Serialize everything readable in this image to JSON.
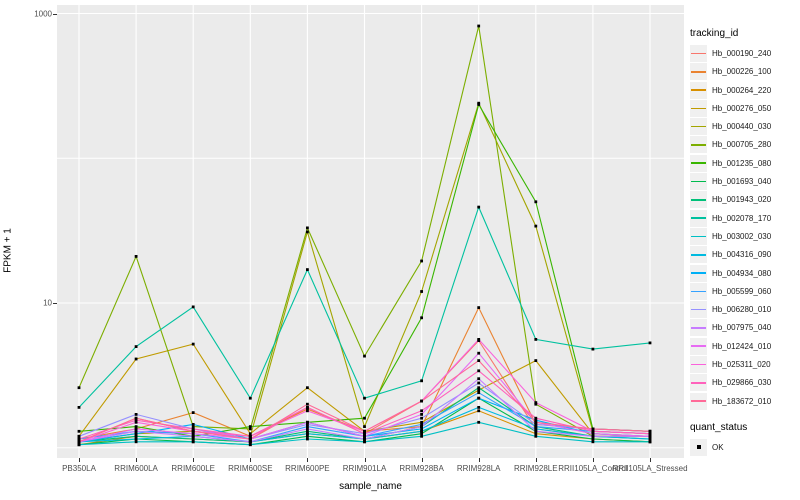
{
  "figure": {
    "background": "#FFFFFF",
    "panel_background": "#EBEBEB",
    "gridline_color": "#FFFFFF",
    "point_color": "#000000",
    "tick_label_color": "#4D4D4D"
  },
  "axes": {
    "y_title": "FPKM + 1",
    "x_title": "sample_name",
    "y_tick_labels": [
      "1000",
      "10"
    ]
  },
  "legend": {
    "color_legend_title": "tracking_id",
    "shape_legend_title": "quant_status",
    "shape_items": [
      "OK"
    ]
  },
  "chart_data": {
    "type": "line",
    "title": "",
    "xlabel": "sample_name",
    "ylabel": "FPKM + 1",
    "y_scale": "log10",
    "y_ticks": [
      {
        "label": "1000",
        "value": 1000
      },
      {
        "label": "10",
        "value": 10
      }
    ],
    "y_gridlines": [
      1000,
      100,
      10,
      1
    ],
    "ylim": [
      0.88,
      1150
    ],
    "grid": true,
    "legend_position": "right",
    "marker": "black-square",
    "x": [
      "PB350LA",
      "RRIM600LA",
      "RRIM600LE",
      "RRIM600SE",
      "RRIM600PE",
      "RRIM901LA",
      "RRIM928BA",
      "RRIM928LA",
      "RRIM928LE",
      "RRII105LA_Control",
      "RRII105LA_Stressed"
    ],
    "values_are": "FPKM + 1 (log scale), estimated from pixels",
    "series": [
      {
        "name": "Hb_000190_240",
        "color": "#F8766D",
        "values": [
          1.1,
          1.6,
          1.3,
          1.15,
          1.9,
          1.25,
          2.1,
          5.5,
          1.35,
          1.2,
          1.2
        ]
      },
      {
        "name": "Hb_000226_100",
        "color": "#EA8331",
        "values": [
          1.15,
          1.35,
          1.75,
          1.2,
          1.85,
          1.3,
          1.4,
          9.3,
          1.45,
          1.35,
          1.3
        ]
      },
      {
        "name": "Hb_000264_220",
        "color": "#D89000",
        "values": [
          1.05,
          1.2,
          1.15,
          1.1,
          1.25,
          1.15,
          1.3,
          1.8,
          1.25,
          1.15,
          1.1
        ]
      },
      {
        "name": "Hb_000276_050",
        "color": "#C09B00",
        "values": [
          1.2,
          4.1,
          5.2,
          1.25,
          2.6,
          1.3,
          1.5,
          2.5,
          4.0,
          1.25,
          1.2
        ]
      },
      {
        "name": "Hb_000440_030",
        "color": "#A3A500",
        "values": [
          1.1,
          1.25,
          1.3,
          1.2,
          31,
          1.4,
          12,
          240,
          34,
          1.3,
          1.25
        ]
      },
      {
        "name": "Hb_000705_280",
        "color": "#7CAE00",
        "values": [
          2.6,
          21,
          1.4,
          1.35,
          33,
          4.3,
          19.5,
          820,
          2.0,
          1.2,
          1.2
        ]
      },
      {
        "name": "Hb_001235_080",
        "color": "#39B600",
        "values": [
          1.3,
          1.4,
          1.2,
          1.4,
          1.5,
          1.6,
          7.9,
          235,
          50,
          1.35,
          1.3
        ]
      },
      {
        "name": "Hb_001693_040",
        "color": "#00BB4E",
        "values": [
          1.05,
          1.15,
          1.1,
          1.05,
          1.2,
          1.1,
          1.25,
          2.2,
          1.3,
          1.15,
          1.1
        ]
      },
      {
        "name": "Hb_001943_020",
        "color": "#00C079",
        "values": [
          1.1,
          1.2,
          1.15,
          1.1,
          1.3,
          1.15,
          1.4,
          2.6,
          1.4,
          1.2,
          1.15
        ]
      },
      {
        "name": "Hb_002078_170",
        "color": "#00C19F",
        "values": [
          1.9,
          5.0,
          9.4,
          2.2,
          17,
          2.2,
          2.9,
          46,
          5.6,
          4.8,
          5.3
        ]
      },
      {
        "name": "Hb_003002_030",
        "color": "#00BFC4",
        "values": [
          1.05,
          1.1,
          1.1,
          1.05,
          1.15,
          1.1,
          1.2,
          1.5,
          1.2,
          1.1,
          1.1
        ]
      },
      {
        "name": "Hb_004316_090",
        "color": "#00BAE0",
        "values": [
          1.1,
          1.15,
          1.2,
          1.1,
          1.25,
          1.15,
          1.3,
          1.9,
          1.35,
          1.2,
          1.15
        ]
      },
      {
        "name": "Hb_004934_080",
        "color": "#00B0F6",
        "values": [
          1.1,
          1.25,
          1.45,
          1.15,
          1.5,
          1.2,
          1.35,
          2.2,
          1.55,
          1.25,
          1.2
        ]
      },
      {
        "name": "Hb_005599_060",
        "color": "#35A2FF",
        "values": [
          1.15,
          1.3,
          1.25,
          1.1,
          1.4,
          1.2,
          1.45,
          2.4,
          1.4,
          1.3,
          1.25
        ]
      },
      {
        "name": "Hb_006280_010",
        "color": "#9590FF",
        "values": [
          1.2,
          1.7,
          1.35,
          1.15,
          1.45,
          1.25,
          1.6,
          2.8,
          1.45,
          1.35,
          1.3
        ]
      },
      {
        "name": "Hb_007975_040",
        "color": "#C77CFF",
        "values": [
          1.1,
          1.3,
          1.2,
          1.1,
          1.35,
          1.15,
          1.4,
          3.0,
          1.3,
          1.2,
          1.2
        ]
      },
      {
        "name": "Hb_012424_010",
        "color": "#E76BF3",
        "values": [
          1.1,
          1.35,
          1.25,
          1.15,
          1.5,
          1.2,
          1.7,
          4.5,
          1.5,
          1.25,
          1.2
        ]
      },
      {
        "name": "Hb_025311_020",
        "color": "#FA62DB",
        "values": [
          1.1,
          1.5,
          1.3,
          1.2,
          1.8,
          1.3,
          2.1,
          5.6,
          2.05,
          1.3,
          1.25
        ]
      },
      {
        "name": "Hb_029866_030",
        "color": "#FF62BC",
        "values": [
          1.15,
          1.55,
          1.35,
          1.2,
          1.9,
          1.25,
          1.8,
          3.4,
          1.6,
          1.3,
          1.25
        ]
      },
      {
        "name": "Hb_183672_010",
        "color": "#FF6A98",
        "values": [
          1.1,
          1.6,
          1.3,
          1.15,
          2.0,
          1.3,
          2.1,
          4.0,
          1.5,
          1.35,
          1.3
        ]
      }
    ]
  }
}
